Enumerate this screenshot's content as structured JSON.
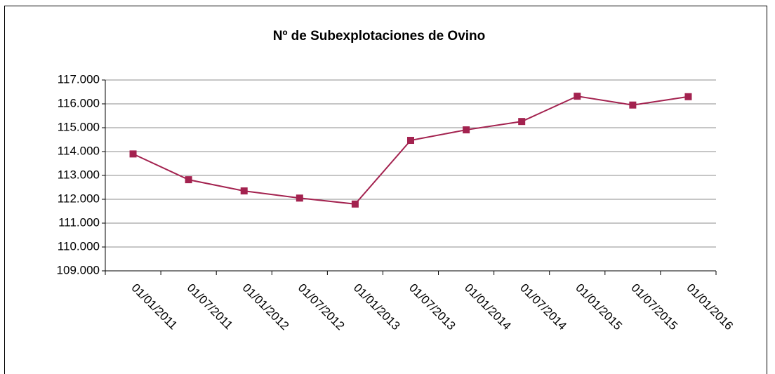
{
  "chart_data": {
    "type": "line",
    "title": "Nº de Subexplotaciones de Ovino",
    "categories": [
      "01/01/2011",
      "01/07/2011",
      "01/01/2012",
      "01/07/2012",
      "01/01/2013",
      "01/07/2013",
      "01/01/2014",
      "01/07/2014",
      "01/01/2015",
      "01/07/2015",
      "01/01/2016"
    ],
    "series": [
      {
        "color": "#a3224f",
        "values": [
          113900,
          112820,
          112350,
          112050,
          111800,
          114470,
          114910,
          115260,
          116320,
          115950,
          116300
        ]
      }
    ],
    "ylim": [
      109000,
      117000
    ],
    "yticks": [
      {
        "value": 109000,
        "label": "109.000"
      },
      {
        "value": 110000,
        "label": "110.000"
      },
      {
        "value": 111000,
        "label": "111.000"
      },
      {
        "value": 112000,
        "label": "112.000"
      },
      {
        "value": 113000,
        "label": "113.000"
      },
      {
        "value": 114000,
        "label": "114.000"
      },
      {
        "value": 115000,
        "label": "115.000"
      },
      {
        "value": 116000,
        "label": "116.000"
      },
      {
        "value": 117000,
        "label": "117.000"
      }
    ],
    "grid": true
  }
}
